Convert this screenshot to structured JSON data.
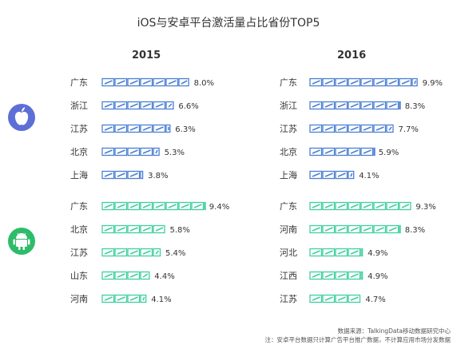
{
  "title": "iOS与安卓平台激活量占比省份TOP5",
  "years": [
    "2015",
    "2016"
  ],
  "colors": {
    "ios": "#4a7fd4",
    "android": "#3fcf9e",
    "ios_icon_bg": "#5c6fd6",
    "android_icon_bg": "#2ebc6a"
  },
  "icons": {
    "ios": "apple-icon",
    "android": "android-icon"
  },
  "chart_data": {
    "type": "bar",
    "unit": "%",
    "groups": [
      {
        "platform": "iOS",
        "year": "2015",
        "categories": [
          "广东",
          "浙江",
          "江苏",
          "北京",
          "上海"
        ],
        "values": [
          8.0,
          6.6,
          6.3,
          5.3,
          3.8
        ],
        "labels": [
          "8.0%",
          "6.6%",
          "6.3%",
          "5.3%",
          "3.8%"
        ]
      },
      {
        "platform": "iOS",
        "year": "2016",
        "categories": [
          "广东",
          "浙江",
          "江苏",
          "北京",
          "上海"
        ],
        "values": [
          9.9,
          8.3,
          7.7,
          5.9,
          4.1
        ],
        "labels": [
          "9.9%",
          "8.3%",
          "7.7%",
          "5.9%",
          "4.1%"
        ]
      },
      {
        "platform": "Android",
        "year": "2015",
        "categories": [
          "广东",
          "北京",
          "江苏",
          "山东",
          "河南"
        ],
        "values": [
          9.4,
          5.8,
          5.4,
          4.4,
          4.1
        ],
        "labels": [
          "9.4%",
          "5.8%",
          "5.4%",
          "4.4%",
          "4.1%"
        ]
      },
      {
        "platform": "Android",
        "year": "2016",
        "categories": [
          "广东",
          "河南",
          "河北",
          "江西",
          "江苏"
        ],
        "values": [
          9.3,
          8.3,
          4.9,
          4.9,
          4.7
        ],
        "labels": [
          "9.3%",
          "8.3%",
          "4.9%",
          "4.9%",
          "4.7%"
        ]
      }
    ]
  },
  "footer": {
    "source": "数据来源：TalkingData移动数据研究中心",
    "note": "注：安卓平台数据只计算广告平台推广数据，不计算应用市场分发数据"
  }
}
